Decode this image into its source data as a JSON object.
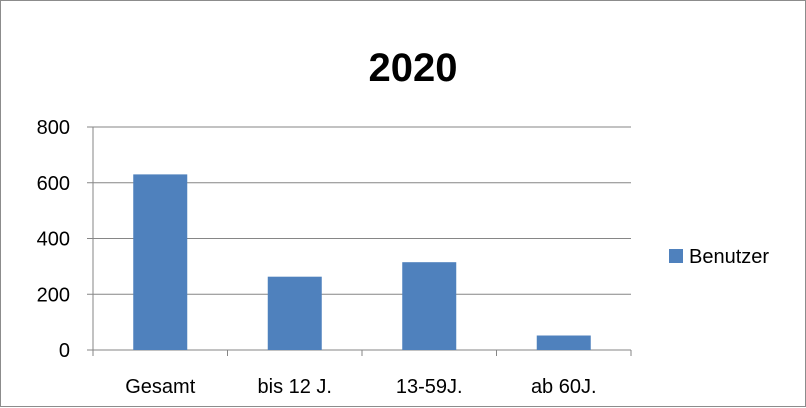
{
  "chart_data": {
    "type": "bar",
    "title": "2020",
    "categories": [
      "Gesamt",
      "bis 12 J.",
      "13-59J.",
      "ab 60J."
    ],
    "series": [
      {
        "name": "Benutzer",
        "values": [
          630,
          263,
          315,
          52
        ],
        "color": "#4f81bd"
      }
    ],
    "xlabel": "",
    "ylabel": "",
    "ylim": [
      0,
      800
    ],
    "yticks": [
      0,
      200,
      400,
      600,
      800
    ],
    "grid": true,
    "legend": "right",
    "gridline_color": "#868686"
  }
}
